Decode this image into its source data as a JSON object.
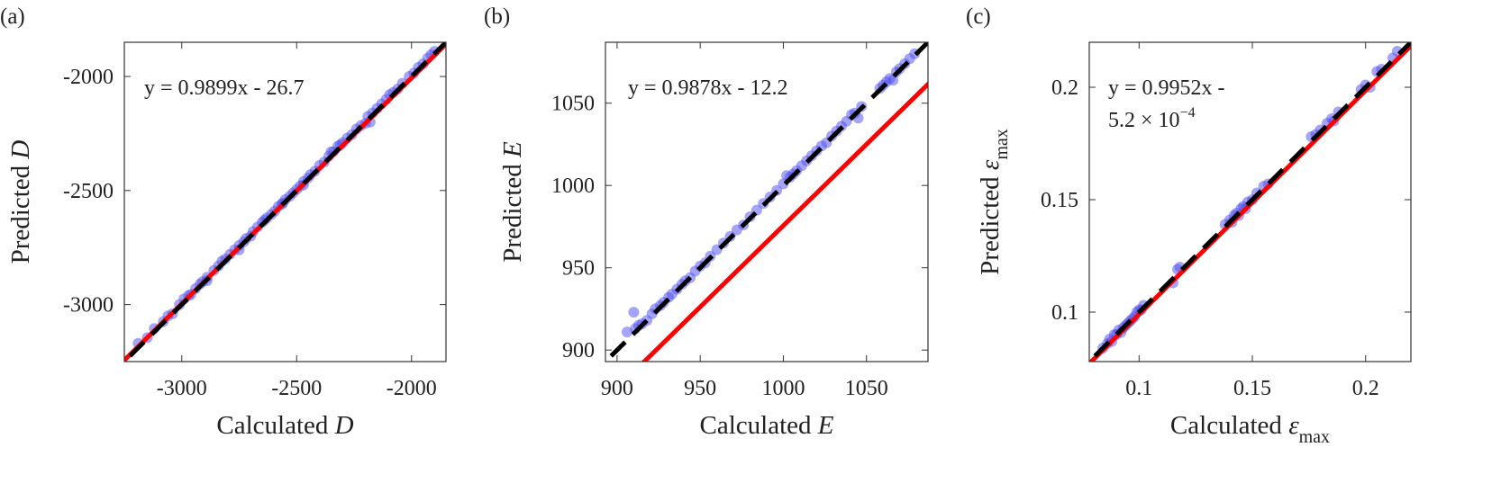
{
  "chart_data": [
    {
      "type": "scatter",
      "panel_label": "(a)",
      "xlabel": "Calculated D",
      "xlabel_parts": {
        "text": "Calculated ",
        "var": "D",
        "sub": ""
      },
      "ylabel": "Predicted D",
      "ylabel_parts": {
        "text": "Predicted ",
        "var": "D",
        "sub": ""
      },
      "xlim": [
        -3250,
        -1850
      ],
      "ylim": [
        -3250,
        -1850
      ],
      "xticks": [
        -3000,
        -2500,
        -2000
      ],
      "yticks": [
        -3000,
        -2500,
        -2000
      ],
      "xtick_labels": [
        "-3000",
        "-2500",
        "-2000"
      ],
      "ytick_labels": [
        "-3000",
        "-2500",
        "-2000"
      ],
      "fit_equation": [
        "y = 0.9899x - 26.7"
      ],
      "fit_line": {
        "slope": 0.9899,
        "intercept": -26.7,
        "color": "#ff0000"
      },
      "identity_line": {
        "slope": 1,
        "intercept": 0,
        "color": "#000000",
        "style": "dashed"
      },
      "point_color": "#4b4bf0",
      "grid": false,
      "points": [
        [
          -3190,
          -3170
        ],
        [
          -3150,
          -3145
        ],
        [
          -3120,
          -3105
        ],
        [
          -3080,
          -3075
        ],
        [
          -3060,
          -3050
        ],
        [
          -3040,
          -3040
        ],
        [
          -3010,
          -3000
        ],
        [
          -2990,
          -2975
        ],
        [
          -2970,
          -2960
        ],
        [
          -2960,
          -2955
        ],
        [
          -2940,
          -2930
        ],
        [
          -2920,
          -2910
        ],
        [
          -2910,
          -2900
        ],
        [
          -2890,
          -2880
        ],
        [
          -2860,
          -2850
        ],
        [
          -2840,
          -2830
        ],
        [
          -2825,
          -2810
        ],
        [
          -2810,
          -2800
        ],
        [
          -2790,
          -2780
        ],
        [
          -2770,
          -2760
        ],
        [
          -2750,
          -2740
        ],
        [
          -2730,
          -2725
        ],
        [
          -2720,
          -2710
        ],
        [
          -2700,
          -2700
        ],
        [
          -2690,
          -2680
        ],
        [
          -2670,
          -2660
        ],
        [
          -2650,
          -2640
        ],
        [
          -2630,
          -2620
        ],
        [
          -2610,
          -2605
        ],
        [
          -2595,
          -2590
        ],
        [
          -2580,
          -2570
        ],
        [
          -2565,
          -2560
        ],
        [
          -2550,
          -2540
        ],
        [
          -2530,
          -2525
        ],
        [
          -2515,
          -2510
        ],
        [
          -2500,
          -2495
        ],
        [
          -2485,
          -2480
        ],
        [
          -2470,
          -2460
        ],
        [
          -2450,
          -2445
        ],
        [
          -2440,
          -2430
        ],
        [
          -2420,
          -2415
        ],
        [
          -2400,
          -2390
        ],
        [
          -2380,
          -2375
        ],
        [
          -2360,
          -2350
        ],
        [
          -2340,
          -2330
        ],
        [
          -2320,
          -2305
        ],
        [
          -2300,
          -2290
        ],
        [
          -2280,
          -2270
        ],
        [
          -2260,
          -2255
        ],
        [
          -2240,
          -2230
        ],
        [
          -2220,
          -2215
        ],
        [
          -2200,
          -2205
        ],
        [
          -2190,
          -2175
        ],
        [
          -2170,
          -2160
        ],
        [
          -2150,
          -2140
        ],
        [
          -2130,
          -2120
        ],
        [
          -2110,
          -2100
        ],
        [
          -2095,
          -2080
        ],
        [
          -2080,
          -2070
        ],
        [
          -2060,
          -2055
        ],
        [
          -2040,
          -2030
        ],
        [
          -2010,
          -2000
        ],
        [
          -1990,
          -1985
        ],
        [
          -1970,
          -1960
        ],
        [
          -1950,
          -1945
        ],
        [
          -1930,
          -1920
        ],
        [
          -1915,
          -1905
        ],
        [
          -1900,
          -1890
        ],
        [
          -2470,
          -2475
        ],
        [
          -2350,
          -2330
        ],
        [
          -2310,
          -2300
        ],
        [
          -2180,
          -2200
        ],
        [
          -2750,
          -2760
        ],
        [
          -2890,
          -2895
        ],
        [
          -2640,
          -2630
        ],
        [
          -2560,
          -2555
        ]
      ]
    },
    {
      "type": "scatter",
      "panel_label": "(b)",
      "xlabel": "Calculated E",
      "xlabel_parts": {
        "text": "Calculated ",
        "var": "E",
        "sub": ""
      },
      "ylabel": "Predicted E",
      "ylabel_parts": {
        "text": "Predicted ",
        "var": "E",
        "sub": ""
      },
      "xlim": [
        893,
        1087
      ],
      "ylim": [
        893,
        1087
      ],
      "xticks": [
        900,
        950,
        1000,
        1050
      ],
      "yticks": [
        900,
        950,
        1000,
        1050
      ],
      "xtick_labels": [
        "900",
        "950",
        "1000",
        "1050"
      ],
      "ytick_labels": [
        "900",
        "950",
        "1000",
        "1050"
      ],
      "fit_equation": [
        "y = 0.9878x - 12.2"
      ],
      "fit_line": {
        "slope": 0.9878,
        "intercept": -12.2,
        "color": "#ff0000"
      },
      "identity_line": {
        "slope": 1,
        "intercept": 0,
        "color": "#000000",
        "style": "dashed"
      },
      "point_color": "#4b4bf0",
      "grid": false,
      "points": [
        [
          906,
          911
        ],
        [
          910,
          923
        ],
        [
          911,
          913
        ],
        [
          913,
          915
        ],
        [
          915,
          916
        ],
        [
          918,
          918
        ],
        [
          921,
          922
        ],
        [
          923,
          925
        ],
        [
          926,
          927
        ],
        [
          928,
          929
        ],
        [
          931,
          932
        ],
        [
          933,
          934
        ],
        [
          936,
          937
        ],
        [
          939,
          940
        ],
        [
          941,
          942
        ],
        [
          944,
          944
        ],
        [
          947,
          948
        ],
        [
          950,
          951
        ],
        [
          953,
          953
        ],
        [
          956,
          957
        ],
        [
          960,
          961
        ],
        [
          964,
          965
        ],
        [
          968,
          969
        ],
        [
          972,
          973
        ],
        [
          976,
          976
        ],
        [
          980,
          981
        ],
        [
          984,
          985
        ],
        [
          988,
          989
        ],
        [
          992,
          993
        ],
        [
          996,
          997
        ],
        [
          1000,
          1001
        ],
        [
          1002,
          1006
        ],
        [
          1004,
          1005
        ],
        [
          1006,
          1007
        ],
        [
          1008,
          1009
        ],
        [
          1011,
          1012
        ],
        [
          1014,
          1015
        ],
        [
          1017,
          1018
        ],
        [
          1020,
          1021
        ],
        [
          1023,
          1024
        ],
        [
          1026,
          1026
        ],
        [
          1029,
          1030
        ],
        [
          1032,
          1033
        ],
        [
          1035,
          1036
        ],
        [
          1038,
          1039
        ],
        [
          1041,
          1043
        ],
        [
          1043,
          1044
        ],
        [
          1045,
          1041
        ],
        [
          1047,
          1048
        ],
        [
          1058,
          1059
        ],
        [
          1060,
          1061
        ],
        [
          1062,
          1063
        ],
        [
          1064,
          1065
        ],
        [
          1066,
          1064
        ],
        [
          1068,
          1069
        ],
        [
          1070,
          1071
        ],
        [
          1073,
          1074
        ],
        [
          1076,
          1077
        ],
        [
          1079,
          1080
        ]
      ]
    },
    {
      "type": "scatter",
      "panel_label": "(c)",
      "xlabel": "Calculated εmax",
      "xlabel_parts": {
        "text": "Calculated ",
        "var": "ε",
        "sub": "max"
      },
      "ylabel": "Predicted εmax",
      "ylabel_parts": {
        "text": "Predicted ",
        "var": "ε",
        "sub": "max"
      },
      "xlim": [
        0.078,
        0.22
      ],
      "ylim": [
        0.078,
        0.22
      ],
      "xticks": [
        0.1,
        0.15,
        0.2
      ],
      "yticks": [
        0.1,
        0.15,
        0.2
      ],
      "xtick_labels": [
        "0.1",
        "0.15",
        "0.2"
      ],
      "ytick_labels": [
        "0.1",
        "0.15",
        "0.2"
      ],
      "fit_equation": [
        "y = 0.9952x -",
        "5.2 × 10",
        "−4"
      ],
      "fit_line": {
        "slope": 0.9952,
        "intercept": -0.00052,
        "color": "#ff0000"
      },
      "identity_line": {
        "slope": 1,
        "intercept": 0,
        "color": "#000000",
        "style": "dashed"
      },
      "point_color": "#4b4bf0",
      "grid": false,
      "points": [
        [
          0.084,
          0.084
        ],
        [
          0.086,
          0.086
        ],
        [
          0.087,
          0.088
        ],
        [
          0.088,
          0.087
        ],
        [
          0.089,
          0.09
        ],
        [
          0.09,
          0.09
        ],
        [
          0.091,
          0.092
        ],
        [
          0.092,
          0.091
        ],
        [
          0.093,
          0.093
        ],
        [
          0.094,
          0.094
        ],
        [
          0.095,
          0.095
        ],
        [
          0.096,
          0.096
        ],
        [
          0.097,
          0.097
        ],
        [
          0.098,
          0.098
        ],
        [
          0.099,
          0.1
        ],
        [
          0.1,
          0.101
        ],
        [
          0.101,
          0.101
        ],
        [
          0.102,
          0.103
        ],
        [
          0.115,
          0.113
        ],
        [
          0.117,
          0.119
        ],
        [
          0.118,
          0.12
        ],
        [
          0.138,
          0.139
        ],
        [
          0.14,
          0.141
        ],
        [
          0.141,
          0.14
        ],
        [
          0.142,
          0.143
        ],
        [
          0.143,
          0.144
        ],
        [
          0.144,
          0.143
        ],
        [
          0.145,
          0.146
        ],
        [
          0.146,
          0.147
        ],
        [
          0.147,
          0.146
        ],
        [
          0.148,
          0.149
        ],
        [
          0.15,
          0.15
        ],
        [
          0.152,
          0.153
        ],
        [
          0.155,
          0.156
        ],
        [
          0.157,
          0.157
        ],
        [
          0.176,
          0.178
        ],
        [
          0.178,
          0.179
        ],
        [
          0.18,
          0.181
        ],
        [
          0.183,
          0.184
        ],
        [
          0.185,
          0.186
        ],
        [
          0.186,
          0.185
        ],
        [
          0.188,
          0.189
        ],
        [
          0.198,
          0.199
        ],
        [
          0.2,
          0.201
        ],
        [
          0.202,
          0.2
        ],
        [
          0.205,
          0.207
        ],
        [
          0.207,
          0.208
        ],
        [
          0.212,
          0.213
        ],
        [
          0.214,
          0.216
        ]
      ]
    }
  ]
}
